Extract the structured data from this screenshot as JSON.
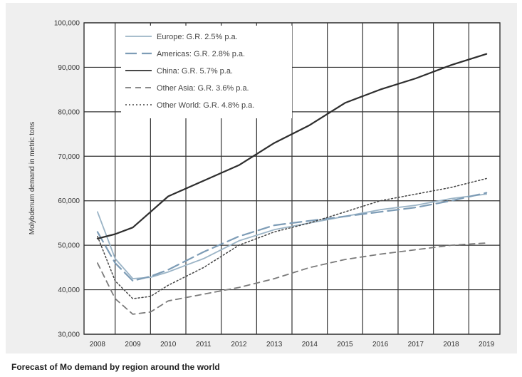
{
  "chart_data": {
    "type": "line",
    "title": "",
    "caption": "Forecast of Mo demand by region around the world",
    "xlabel": "",
    "ylabel": "Molybdenum demand in metric tons",
    "x": [
      "2008",
      "2009",
      "2010",
      "2011",
      "2012",
      "2013",
      "2014",
      "2015",
      "2016",
      "2017",
      "2018",
      "2019"
    ],
    "x_values": [
      2008,
      2009,
      2010,
      2011,
      2012,
      2013,
      2014,
      2015,
      2016,
      2017,
      2018,
      2019
    ],
    "ylim": [
      30000,
      100000
    ],
    "yticks": [
      30000,
      40000,
      50000,
      60000,
      70000,
      80000,
      90000,
      100000
    ],
    "ytick_labels": [
      "30,000",
      "40,000",
      "50,000",
      "60,000",
      "70,000",
      "80,000",
      "90,000",
      "100,000"
    ],
    "grid": true,
    "legend_position": "top-left",
    "series": [
      {
        "name": "Europe: G.R. 2.5% p.a.",
        "color": "#9bb4c6",
        "style": "solid",
        "points": [
          [
            2008,
            57500
          ],
          [
            2008.5,
            47000
          ],
          [
            2009,
            42500
          ],
          [
            2009.5,
            42800
          ],
          [
            2010,
            44000
          ],
          [
            2010.5,
            45500
          ],
          [
            2011,
            47000
          ],
          [
            2012,
            51000
          ],
          [
            2013,
            53500
          ],
          [
            2014,
            55000
          ],
          [
            2015,
            56500
          ],
          [
            2016,
            58000
          ],
          [
            2017,
            59000
          ],
          [
            2018,
            60500
          ],
          [
            2019,
            61500
          ]
        ]
      },
      {
        "name": "Americas: G.R. 2.8% p.a.",
        "color": "#7d9cb6",
        "style": "longdash",
        "points": [
          [
            2008,
            53000
          ],
          [
            2008.5,
            46000
          ],
          [
            2009,
            42000
          ],
          [
            2009.5,
            43000
          ],
          [
            2010,
            44500
          ],
          [
            2010.5,
            46500
          ],
          [
            2011,
            48500
          ],
          [
            2012,
            52000
          ],
          [
            2013,
            54500
          ],
          [
            2014,
            55500
          ],
          [
            2015,
            56500
          ],
          [
            2016,
            57500
          ],
          [
            2017,
            58500
          ],
          [
            2018,
            60000
          ],
          [
            2019,
            61800
          ]
        ]
      },
      {
        "name": "China: G.R. 5.7% p.a.",
        "color": "#2e2e2e",
        "style": "solid",
        "points": [
          [
            2008,
            51500
          ],
          [
            2008.5,
            52500
          ],
          [
            2009,
            54000
          ],
          [
            2009.5,
            57500
          ],
          [
            2010,
            61000
          ],
          [
            2011,
            64500
          ],
          [
            2012,
            68000
          ],
          [
            2013,
            73000
          ],
          [
            2014,
            77000
          ],
          [
            2015,
            82000
          ],
          [
            2016,
            85000
          ],
          [
            2017,
            87500
          ],
          [
            2018,
            90500
          ],
          [
            2019,
            93000
          ]
        ]
      },
      {
        "name": "Other Asia: G.R. 3.6% p.a.",
        "color": "#7a7a7a",
        "style": "dashed",
        "points": [
          [
            2008,
            46000
          ],
          [
            2008.5,
            38000
          ],
          [
            2009,
            34500
          ],
          [
            2009.5,
            35000
          ],
          [
            2010,
            37500
          ],
          [
            2011,
            39000
          ],
          [
            2012,
            40500
          ],
          [
            2013,
            42500
          ],
          [
            2014,
            45000
          ],
          [
            2015,
            46800
          ],
          [
            2016,
            48000
          ],
          [
            2017,
            49000
          ],
          [
            2018,
            50000
          ],
          [
            2019,
            50500
          ]
        ]
      },
      {
        "name": "Other World: G.R. 4.8% p.a.",
        "color": "#444444",
        "style": "dotted",
        "points": [
          [
            2008,
            52000
          ],
          [
            2008.5,
            42000
          ],
          [
            2009,
            38000
          ],
          [
            2009.5,
            38500
          ],
          [
            2010,
            41000
          ],
          [
            2011,
            45000
          ],
          [
            2012,
            50000
          ],
          [
            2013,
            53000
          ],
          [
            2014,
            55000
          ],
          [
            2015,
            57500
          ],
          [
            2016,
            60000
          ],
          [
            2017,
            61500
          ],
          [
            2018,
            63000
          ],
          [
            2019,
            65000
          ]
        ]
      }
    ]
  }
}
